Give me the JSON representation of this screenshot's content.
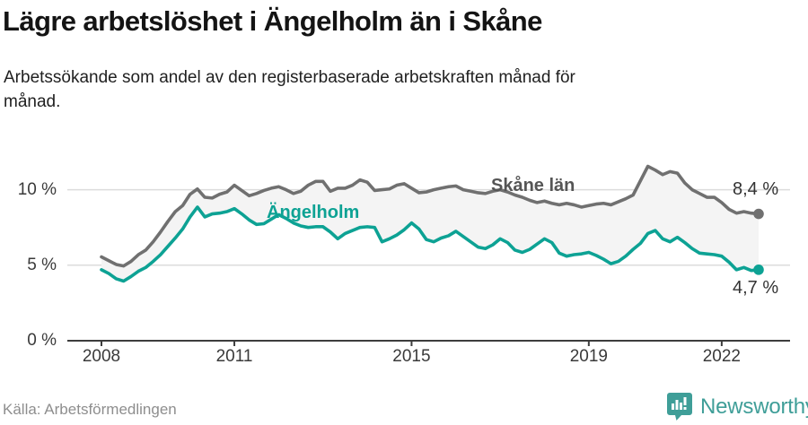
{
  "header": {
    "title": "Lägre arbetslöshet i Ängelholm än i Skåne",
    "subtitle": "Arbetssökande som andel av den registerbaserade arbetskraften månad för månad.",
    "subtitle_lines": [
      "Arbetssökande som andel av den registerbaserade arbetskraften månad för",
      "månad."
    ]
  },
  "footer": {
    "source": "Källa: Arbetsförmedlingen",
    "brand": "Newsworthy"
  },
  "colors": {
    "angelholm": "#0DA294",
    "skane": "#707070",
    "band": "#F4F4F4",
    "grid": "#DCDCDC",
    "axis": "#3D3D3D",
    "tick_text": "#3A3A3A",
    "annotation": "#333333",
    "brand_teal": "#3F9E98"
  },
  "chart_data": {
    "type": "line",
    "title": "Lägre arbetslöshet i Ängelholm än i Skåne",
    "subtitle": "Arbetssökande som andel av den registerbaserade arbetskraften månad för månad.",
    "xlabel": "",
    "ylabel": "",
    "grid": true,
    "legend_position": "inline",
    "x_start_year": 2008.0,
    "x_step_years": 0.1667,
    "x_end_year": 2022.83,
    "ylim": [
      0,
      12.5
    ],
    "x_ticks": [
      {
        "label": "2008",
        "year": 2008
      },
      {
        "label": "2011",
        "year": 2011
      },
      {
        "label": "2015",
        "year": 2015
      },
      {
        "label": "2019",
        "year": 2019
      },
      {
        "label": "2022",
        "year": 2022
      }
    ],
    "y_ticks": [
      {
        "label": "0 %",
        "value": 0
      },
      {
        "label": "5 %",
        "value": 5
      },
      {
        "label": "10 %",
        "value": 10
      }
    ],
    "series": [
      {
        "name": "Skåne län",
        "color": "#707070",
        "end_label": "8,4 %",
        "end_value": 8.4,
        "values": [
          5.55,
          5.3,
          5.05,
          4.95,
          5.25,
          5.7,
          6.0,
          6.55,
          7.2,
          7.9,
          8.55,
          8.95,
          9.7,
          10.05,
          9.5,
          9.45,
          9.7,
          9.85,
          10.3,
          9.95,
          9.6,
          9.75,
          9.95,
          10.1,
          10.2,
          10.0,
          9.75,
          9.9,
          10.3,
          10.55,
          10.55,
          9.9,
          10.1,
          10.1,
          10.3,
          10.65,
          10.5,
          9.95,
          10.0,
          10.05,
          10.3,
          10.4,
          10.1,
          9.8,
          9.85,
          10.0,
          10.1,
          10.2,
          10.25,
          10.0,
          9.9,
          9.8,
          9.75,
          9.9,
          10.0,
          9.85,
          9.65,
          9.5,
          9.3,
          9.15,
          9.25,
          9.1,
          9.0,
          9.1,
          9.0,
          8.85,
          8.95,
          9.05,
          9.1,
          9.0,
          9.2,
          9.4,
          9.65,
          10.6,
          11.55,
          11.3,
          11.0,
          11.2,
          11.1,
          10.45,
          10.0,
          9.75,
          9.5,
          9.5,
          9.15,
          8.7,
          8.45,
          8.55,
          8.45,
          8.4
        ]
      },
      {
        "name": "Ängelholm",
        "color": "#0DA294",
        "end_label": "4,7 %",
        "end_value": 4.7,
        "values": [
          4.7,
          4.45,
          4.1,
          3.95,
          4.25,
          4.6,
          4.85,
          5.25,
          5.7,
          6.25,
          6.8,
          7.4,
          8.2,
          8.85,
          8.2,
          8.4,
          8.45,
          8.55,
          8.75,
          8.4,
          8.0,
          7.7,
          7.75,
          8.05,
          8.35,
          8.1,
          7.8,
          7.6,
          7.5,
          7.55,
          7.55,
          7.2,
          6.75,
          7.1,
          7.3,
          7.5,
          7.55,
          7.5,
          6.55,
          6.75,
          7.0,
          7.35,
          7.8,
          7.4,
          6.7,
          6.55,
          6.8,
          6.95,
          7.25,
          6.9,
          6.55,
          6.2,
          6.1,
          6.35,
          6.75,
          6.5,
          6.0,
          5.85,
          6.05,
          6.4,
          6.75,
          6.5,
          5.8,
          5.6,
          5.7,
          5.75,
          5.85,
          5.65,
          5.4,
          5.1,
          5.25,
          5.6,
          6.05,
          6.45,
          7.1,
          7.3,
          6.75,
          6.55,
          6.85,
          6.5,
          6.1,
          5.8,
          5.75,
          5.7,
          5.6,
          5.2,
          4.7,
          4.85,
          4.65,
          4.7
        ]
      }
    ]
  }
}
